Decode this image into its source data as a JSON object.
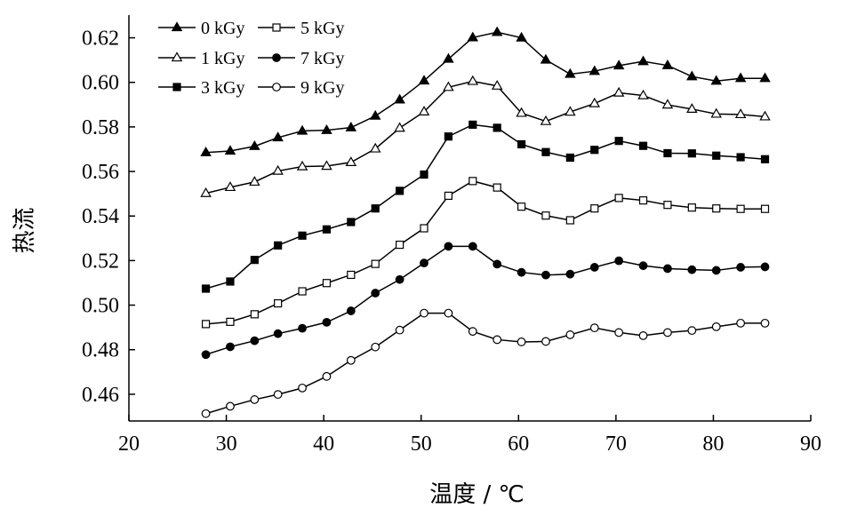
{
  "chart_data": {
    "type": "line",
    "xlabel": "温度 / ℃",
    "ylabel": "热流",
    "xlim": [
      20,
      90
    ],
    "ylim": [
      0.448,
      0.627
    ],
    "x_ticks": [
      20,
      30,
      40,
      50,
      60,
      70,
      80,
      90
    ],
    "y_ticks": [
      0.46,
      0.48,
      0.5,
      0.52,
      0.54,
      0.56,
      0.58,
      0.6,
      0.62
    ],
    "x_tick_labels": [
      "20",
      "30",
      "40",
      "50",
      "60",
      "70",
      "80",
      "90"
    ],
    "y_tick_labels": [
      "0.46",
      "0.48",
      "0.50",
      "0.52",
      "0.54",
      "0.56",
      "0.58",
      "0.60",
      "0.62"
    ],
    "grid": false,
    "legend_position": "top-left",
    "x": [
      27.9,
      30.4,
      32.9,
      35.3,
      37.8,
      40.3,
      42.8,
      45.3,
      47.8,
      50.3,
      52.8,
      55.3,
      57.8,
      60.3,
      62.8,
      65.3,
      67.8,
      70.3,
      72.8,
      75.3,
      77.8,
      80.3,
      82.8,
      85.3
    ],
    "series": [
      {
        "name": "0 kGy",
        "marker": "triangle-filled",
        "values": [
          0.5685,
          0.5692,
          0.5713,
          0.5752,
          0.5782,
          0.5785,
          0.5797,
          0.5849,
          0.5922,
          0.6007,
          0.6105,
          0.6201,
          0.6225,
          0.62,
          0.6101,
          0.6037,
          0.605,
          0.6075,
          0.6094,
          0.6076,
          0.6026,
          0.6006,
          0.6018,
          0.6018
        ]
      },
      {
        "name": "5 kGy",
        "marker": "square-open",
        "values": [
          0.4915,
          0.4925,
          0.4959,
          0.5008,
          0.5062,
          0.5099,
          0.5136,
          0.5185,
          0.5271,
          0.5345,
          0.5491,
          0.5557,
          0.5528,
          0.5442,
          0.5402,
          0.5381,
          0.5434,
          0.5481,
          0.547,
          0.545,
          0.5438,
          0.5434,
          0.5432,
          0.5432
        ]
      },
      {
        "name": "1 kGy",
        "marker": "triangle-open",
        "values": [
          0.5502,
          0.5529,
          0.5553,
          0.5602,
          0.5622,
          0.5624,
          0.5641,
          0.5702,
          0.5795,
          0.5868,
          0.5978,
          0.6005,
          0.5984,
          0.5862,
          0.5825,
          0.5867,
          0.5905,
          0.5953,
          0.5941,
          0.5899,
          0.588,
          0.5858,
          0.5856,
          0.5846
        ]
      },
      {
        "name": "7 kGy",
        "marker": "circle-filled",
        "values": [
          0.4778,
          0.4813,
          0.484,
          0.4872,
          0.4896,
          0.4923,
          0.4974,
          0.5054,
          0.5115,
          0.5189,
          0.5264,
          0.5264,
          0.5184,
          0.5147,
          0.5135,
          0.5139,
          0.517,
          0.5199,
          0.5177,
          0.5164,
          0.5159,
          0.5156,
          0.517,
          0.5172
        ]
      },
      {
        "name": "3 kGy",
        "marker": "square-filled",
        "values": [
          0.5074,
          0.5106,
          0.5203,
          0.5268,
          0.5312,
          0.534,
          0.5373,
          0.5434,
          0.5513,
          0.5586,
          0.5757,
          0.581,
          0.5796,
          0.5722,
          0.5687,
          0.5662,
          0.5697,
          0.5737,
          0.5715,
          0.5682,
          0.5681,
          0.5671,
          0.5664,
          0.5655
        ]
      },
      {
        "name": "9 kGy",
        "marker": "circle-open",
        "values": [
          0.4513,
          0.4546,
          0.4576,
          0.4599,
          0.4628,
          0.468,
          0.4752,
          0.4812,
          0.4888,
          0.4964,
          0.4964,
          0.4882,
          0.4845,
          0.4835,
          0.4837,
          0.4867,
          0.4898,
          0.4877,
          0.4863,
          0.4877,
          0.4886,
          0.4903,
          0.4919,
          0.4919
        ]
      }
    ]
  }
}
